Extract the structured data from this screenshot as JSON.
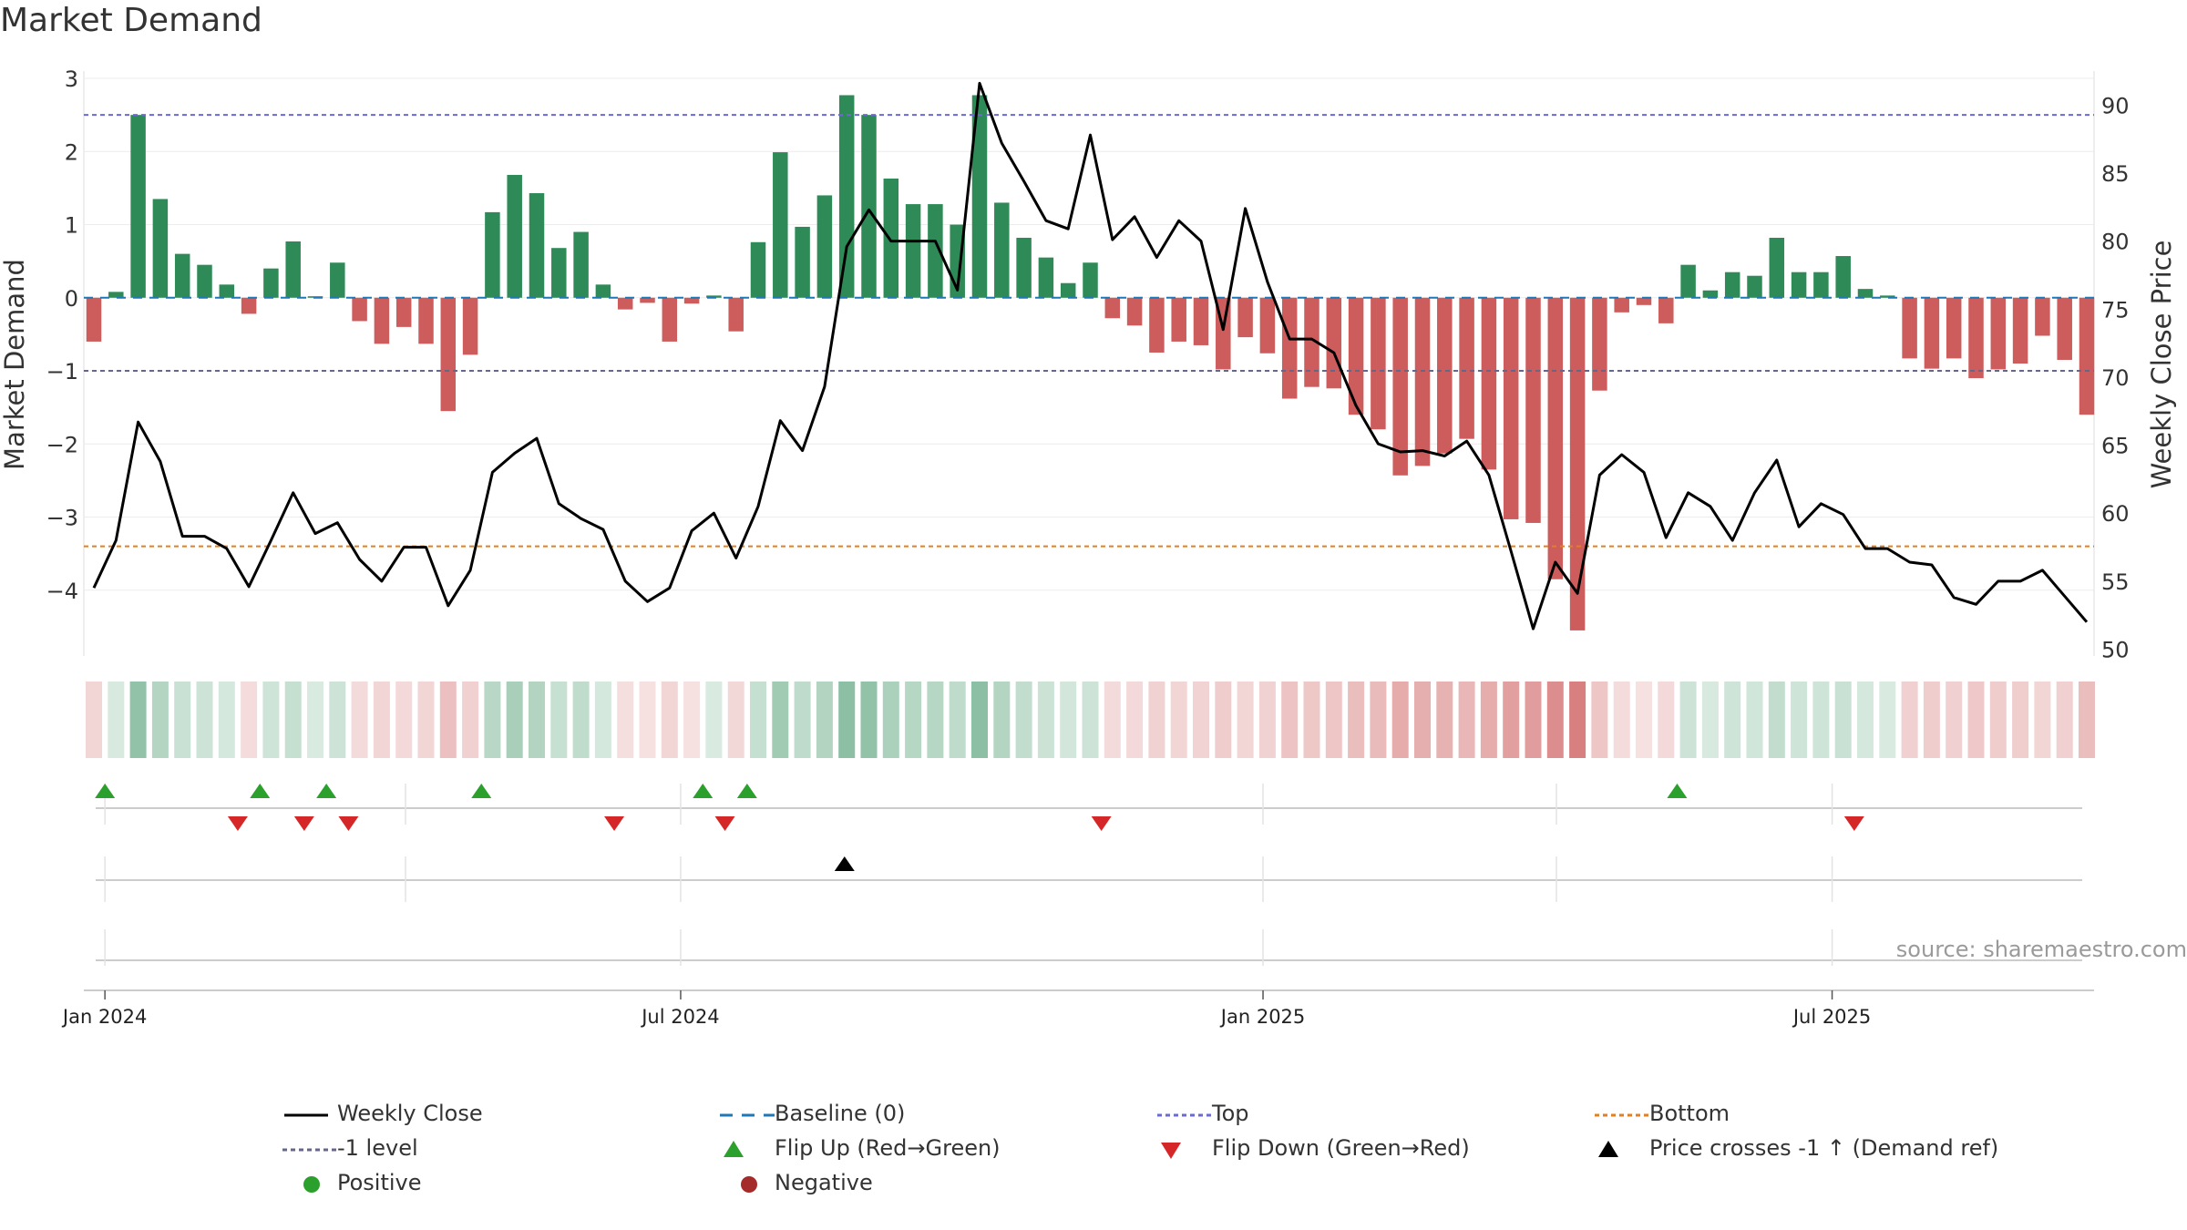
{
  "chart_title": "Market Demand",
  "source_text": "source: sharemaestro.com",
  "colors": {
    "positive_bar": "#2e8b57",
    "negative_bar": "#cd5c5c",
    "price_line": "#000000",
    "baseline": "#1f77b4",
    "top_line": "#6a6ad0",
    "neg1_line": "#666688",
    "bottom_line": "#e08020",
    "flip_up": "#2ca02c",
    "flip_down": "#d62728",
    "cross_marker": "#000000",
    "positive_dot": "#2ca02c",
    "negative_dot": "#a52a2a"
  },
  "legend": [
    {
      "label": "Weekly Close",
      "icon": "solid-line-icon"
    },
    {
      "label": "Baseline (0)",
      "icon": "dashed-line-icon"
    },
    {
      "label": "Top",
      "icon": "dotted-line-icon"
    },
    {
      "label": "Bottom",
      "icon": "dotted-line-icon"
    },
    {
      "label": "-1 level",
      "icon": "dotted-line-icon"
    },
    {
      "label": "Flip Up (Red→Green)",
      "icon": "triangle-up-icon"
    },
    {
      "label": "Flip Down (Green→Red)",
      "icon": "triangle-down-icon"
    },
    {
      "label": "Price crosses -1 ↑ (Demand ref)",
      "icon": "triangle-up-icon"
    },
    {
      "label": "Positive",
      "icon": "circle-icon"
    },
    {
      "label": "Negative",
      "icon": "circle-icon"
    }
  ],
  "chart_data": {
    "type": "bar",
    "title": "Market Demand",
    "ylabel": "Market Demand",
    "y2label": "Weekly Close Price",
    "ylim": [
      -4.9,
      3.1
    ],
    "y2lim": [
      49.5,
      92.5
    ],
    "yticks": [
      3,
      2,
      1,
      0,
      -1,
      -2,
      -3,
      -4
    ],
    "ytick_labels": [
      "3",
      "2",
      "1",
      "0",
      "−1",
      "−2",
      "−3",
      "−4"
    ],
    "y2ticks": [
      90,
      85,
      80,
      75,
      70,
      65,
      60,
      55,
      50
    ],
    "y2tick_labels": [
      "90",
      "85",
      "80",
      "75",
      "70",
      "65",
      "60",
      "55",
      "50"
    ],
    "x_ticks": [
      {
        "label": "Jan 2024",
        "week": 1
      },
      {
        "label": "Jul 2024",
        "week": 27
      },
      {
        "label": "Jan 2025",
        "week": 53.3
      },
      {
        "label": "Jul 2025",
        "week": 79
      }
    ],
    "reference_lines": {
      "top": 2.5,
      "bottom": -3.4,
      "neg1": -1,
      "baseline": 0
    },
    "series": [
      {
        "name": "Market Demand",
        "kind": "bar",
        "values": [
          -0.6,
          0.08,
          2.5,
          1.35,
          0.6,
          0.45,
          0.18,
          -0.22,
          0.4,
          0.77,
          0.02,
          0.48,
          -0.32,
          -0.63,
          -0.4,
          -0.63,
          -1.55,
          -0.78,
          1.17,
          1.68,
          1.43,
          0.68,
          0.9,
          0.18,
          -0.16,
          -0.07,
          -0.6,
          -0.08,
          0.03,
          -0.46,
          0.76,
          1.99,
          0.97,
          1.4,
          2.77,
          2.5,
          1.63,
          1.28,
          1.28,
          1.0,
          2.77,
          1.3,
          0.82,
          0.55,
          0.2,
          0.48,
          -0.28,
          -0.38,
          -0.75,
          -0.6,
          -0.65,
          -0.98,
          -0.54,
          -0.76,
          -1.38,
          -1.22,
          -1.24,
          -1.6,
          -1.8,
          -2.43,
          -2.3,
          -2.13,
          -1.93,
          -2.35,
          -3.03,
          -3.08,
          -3.85,
          -4.55,
          -1.27,
          -0.2,
          -0.1,
          -0.35,
          0.45,
          0.1,
          0.35,
          0.3,
          0.82,
          0.35,
          0.35,
          0.57,
          0.12,
          0.03,
          -0.83,
          -0.97,
          -0.83,
          -1.1,
          -0.98,
          -0.9,
          -0.52,
          -0.85,
          -1.6
        ]
      },
      {
        "name": "Weekly Close",
        "kind": "line",
        "values": [
          54.5,
          58,
          66.7,
          63.8,
          58.3,
          58.3,
          57.4,
          54.6,
          58,
          61.5,
          58.5,
          59.3,
          56.6,
          55,
          57.5,
          57.5,
          53.2,
          55.8,
          63,
          64.4,
          65.5,
          60.7,
          59.6,
          58.8,
          55,
          53.5,
          54.5,
          58.7,
          60,
          56.7,
          60.5,
          66.8,
          64.6,
          69.3,
          79.6,
          82.3,
          80,
          80,
          80,
          76.4,
          91.6,
          87.2,
          84.4,
          81.5,
          80.9,
          87.8,
          80.1,
          81.8,
          78.8,
          81.5,
          80,
          73.5,
          82.4,
          77,
          72.8,
          72.8,
          71.8,
          67.9,
          65.1,
          64.5,
          64.6,
          64.2,
          65.3,
          62.8,
          57.2,
          51.5,
          56.4,
          54.1,
          62.8,
          64.3,
          63,
          58.2,
          61.5,
          60.5,
          58,
          61.5,
          63.9,
          59,
          60.7,
          59.9,
          57.4,
          57.4,
          56.4,
          56.2,
          53.8,
          53.3,
          55,
          55,
          55.8,
          53.9,
          52
        ]
      },
      {
        "name": "Flip Up (Red→Green)",
        "kind": "marker",
        "weeks": [
          1,
          8,
          11,
          18,
          28,
          30,
          72
        ]
      },
      {
        "name": "Flip Down (Green→Red)",
        "kind": "marker",
        "weeks": [
          7,
          10,
          12,
          24,
          29,
          46,
          80
        ]
      },
      {
        "name": "Price crosses -1 ↑ (Demand ref)",
        "kind": "marker",
        "weeks": [
          34.4
        ]
      }
    ]
  }
}
